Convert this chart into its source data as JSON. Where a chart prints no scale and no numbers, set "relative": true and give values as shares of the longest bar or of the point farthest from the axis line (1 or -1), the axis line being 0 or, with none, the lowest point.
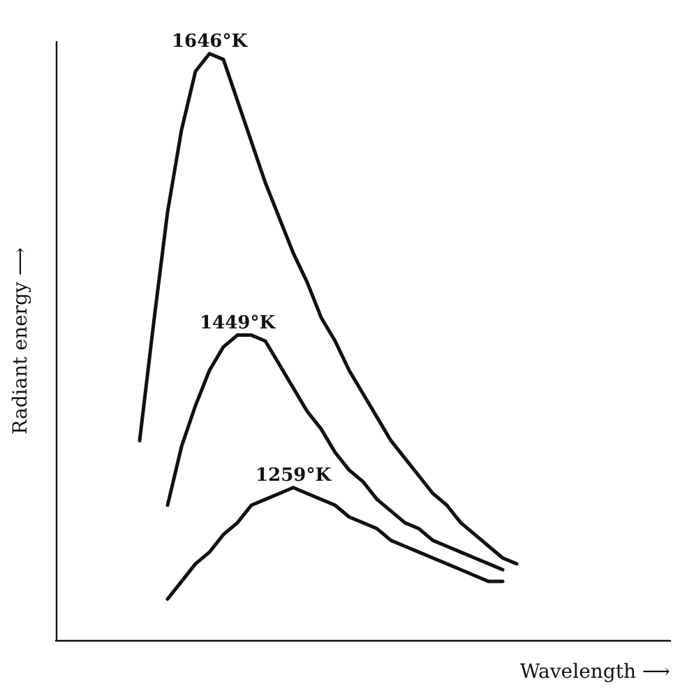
{
  "chart_data": {
    "type": "line",
    "relative": true,
    "xlabel": "Wavelength ⟶",
    "ylabel": "Radiant energy ⟶",
    "grid": false,
    "legend": false,
    "categories": [
      null,
      null,
      null,
      null,
      null,
      null,
      null,
      null,
      null,
      null,
      null,
      null,
      null,
      null,
      null,
      null,
      null,
      null,
      null,
      null,
      null,
      null,
      null,
      null,
      null,
      null,
      null,
      null,
      null,
      null,
      null,
      null,
      null,
      null,
      null,
      null,
      null,
      null,
      null,
      null,
      null,
      null,
      null,
      null,
      null
    ],
    "series": [
      {
        "name": "1646°K",
        "color": "#111111",
        "values": [
          null,
          null,
          null,
          null,
          null,
          null,
          0.34,
          0.54,
          0.73,
          0.87,
          0.97,
          1,
          0.99,
          0.92,
          0.85,
          0.78,
          0.72,
          0.66,
          0.61,
          0.55,
          0.51,
          0.46,
          0.42,
          0.38,
          0.34,
          0.31,
          0.28,
          0.25,
          0.23,
          0.2,
          0.18,
          0.16,
          0.14,
          0.13,
          null,
          null,
          null,
          null,
          null,
          null,
          null,
          null,
          null,
          null,
          null
        ]
      },
      {
        "name": "1449°K",
        "color": "#111111",
        "values": [
          null,
          null,
          null,
          null,
          null,
          null,
          null,
          null,
          0.23,
          0.33,
          0.4,
          0.46,
          0.5,
          0.52,
          0.52,
          0.51,
          0.47,
          0.43,
          0.39,
          0.36,
          0.32,
          0.29,
          0.27,
          0.24,
          0.22,
          0.2,
          0.19,
          0.17,
          0.16,
          0.15,
          0.14,
          0.13,
          0.12,
          null,
          null,
          null,
          null,
          null,
          null,
          null,
          null,
          null,
          null,
          null,
          null
        ]
      },
      {
        "name": "1259°K",
        "color": "#111111",
        "values": [
          null,
          null,
          null,
          null,
          null,
          null,
          null,
          null,
          0.07,
          0.1,
          0.13,
          0.15,
          0.18,
          0.2,
          0.23,
          0.24,
          0.25,
          0.26,
          0.25,
          0.24,
          0.23,
          0.21,
          0.2,
          0.19,
          0.17,
          0.16,
          0.15,
          0.14,
          0.13,
          0.12,
          0.11,
          0.1,
          0.1,
          null,
          null,
          null,
          null,
          null,
          null,
          null,
          null,
          null,
          null,
          null,
          null
        ]
      }
    ]
  }
}
